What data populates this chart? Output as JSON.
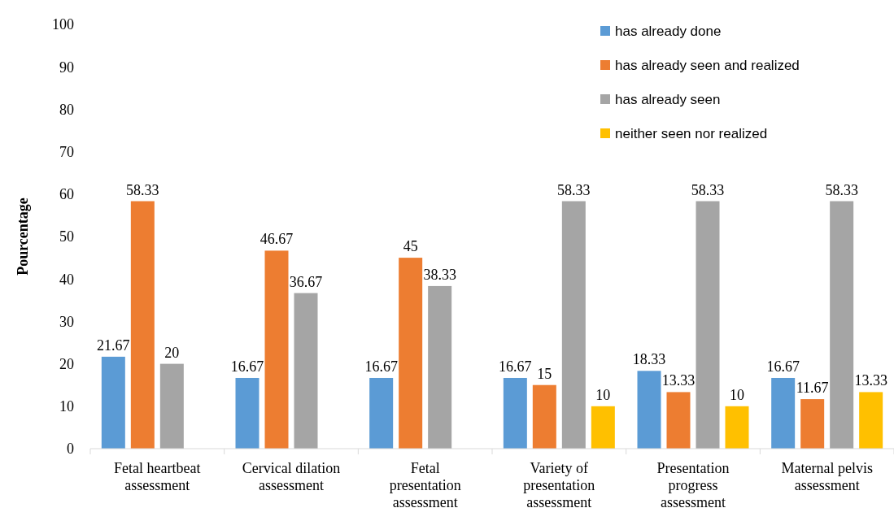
{
  "chart_data": {
    "type": "bar",
    "ylabel": "Pourcentage",
    "categories": [
      "Fetal heartbeat assessment",
      "Cervical dilation assessment",
      "Fetal presentation assessment",
      "Variety of presentation assessment",
      "Presentation progress assessment",
      "Maternal pelvis assessment"
    ],
    "series": [
      {
        "name": "has already done",
        "color": "#5b9bd5",
        "values": [
          21.67,
          16.67,
          16.67,
          16.67,
          18.33,
          16.67
        ]
      },
      {
        "name": "has already seen and realized",
        "color": "#ed7d31",
        "values": [
          58.33,
          46.67,
          45,
          15,
          13.33,
          11.67
        ]
      },
      {
        "name": "has already seen",
        "color": "#a5a5a5",
        "values": [
          20,
          36.67,
          38.33,
          58.33,
          58.33,
          58.33
        ]
      },
      {
        "name": "neither seen nor realized",
        "color": "#ffc000",
        "values": [
          null,
          null,
          null,
          10,
          10,
          13.33
        ]
      }
    ],
    "ylim": [
      0,
      100
    ],
    "yticks": [
      0,
      10,
      20,
      30,
      40,
      50,
      60,
      70,
      80,
      90,
      100
    ],
    "grid": false,
    "legend": "top right",
    "data_labels": true
  }
}
